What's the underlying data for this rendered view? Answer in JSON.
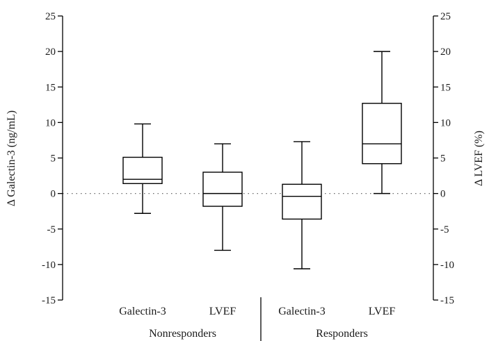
{
  "chart_data": {
    "type": "box",
    "y_left": {
      "label": "Δ Galectin-3 (ng/mL)",
      "range": [
        -15,
        25
      ],
      "ticks": [
        25,
        20,
        15,
        10,
        5,
        0,
        -5,
        -10,
        -15
      ]
    },
    "y_right": {
      "label": "Δ LVEF (%)",
      "range": [
        -15,
        25
      ],
      "ticks": [
        25,
        20,
        15,
        10,
        5,
        0,
        -5,
        -10,
        -15
      ]
    },
    "zero_line": {
      "y": 0,
      "style": "dotted"
    },
    "groups": [
      {
        "name": "Nonresponders",
        "boxes": [
          {
            "label": "Galectin-3",
            "axis": "left",
            "min": -2.8,
            "q1": 1.4,
            "median": 2.0,
            "q3": 5.1,
            "max": 9.8
          },
          {
            "label": "LVEF",
            "axis": "right",
            "min": -8.0,
            "q1": -1.8,
            "median": 0.0,
            "q3": 3.0,
            "max": 7.0
          }
        ]
      },
      {
        "name": "Responders",
        "boxes": [
          {
            "label": "Galectin-3",
            "axis": "left",
            "min": -10.6,
            "q1": -3.6,
            "median": -0.4,
            "q3": 1.3,
            "max": 7.3
          },
          {
            "label": "LVEF",
            "axis": "right",
            "min": 0.0,
            "q1": 4.2,
            "median": 7.0,
            "q3": 12.7,
            "max": 20.0
          }
        ]
      }
    ]
  }
}
